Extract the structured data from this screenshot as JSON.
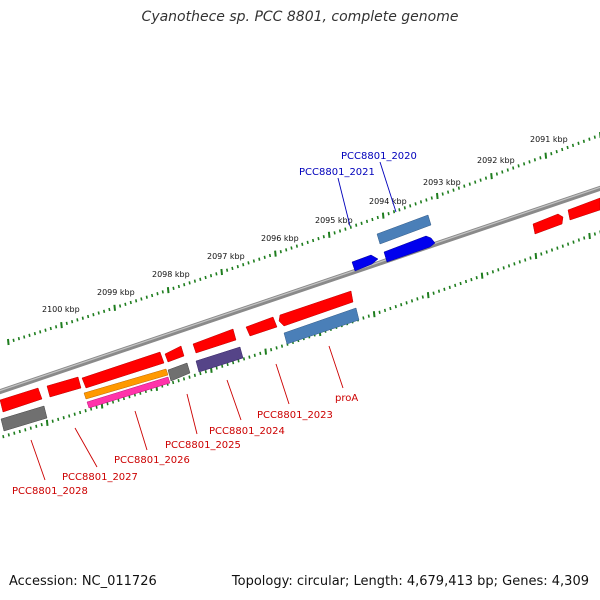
{
  "title": "Cyanothece sp. PCC 8801, complete genome",
  "footer": {
    "accession": "Accession: NC_011726",
    "topology": "Topology: circular; Length: 4,679,413 bp; Genes: 4,309"
  },
  "colors": {
    "backbone": "#8a8a8a",
    "tick": "#1e7d1e",
    "label_red": "#cc0000",
    "label_blue": "#0000bb",
    "cds_red": "#ff0000",
    "cds_blue": "#0000ee",
    "cds_steelblue": "#4a7fb8",
    "cds_gray": "#707070",
    "cds_orange": "#ff9900",
    "cds_magenta": "#ff33aa",
    "cds_purple": "#554488"
  },
  "scale_labels": [
    "2100 kbp",
    "2099 kbp",
    "2098 kbp",
    "2097 kbp",
    "2096 kbp",
    "2095 kbp",
    "2094 kbp",
    "2093 kbp",
    "2092 kbp",
    "2091 kbp"
  ],
  "gene_labels": {
    "top": [
      "PCC8801_2020",
      "PCC8801_2021"
    ],
    "bottom": [
      "proA",
      "PCC8801_2023",
      "PCC8801_2024",
      "PCC8801_2025",
      "PCC8801_2026",
      "PCC8801_2027",
      "PCC8801_2028"
    ]
  }
}
